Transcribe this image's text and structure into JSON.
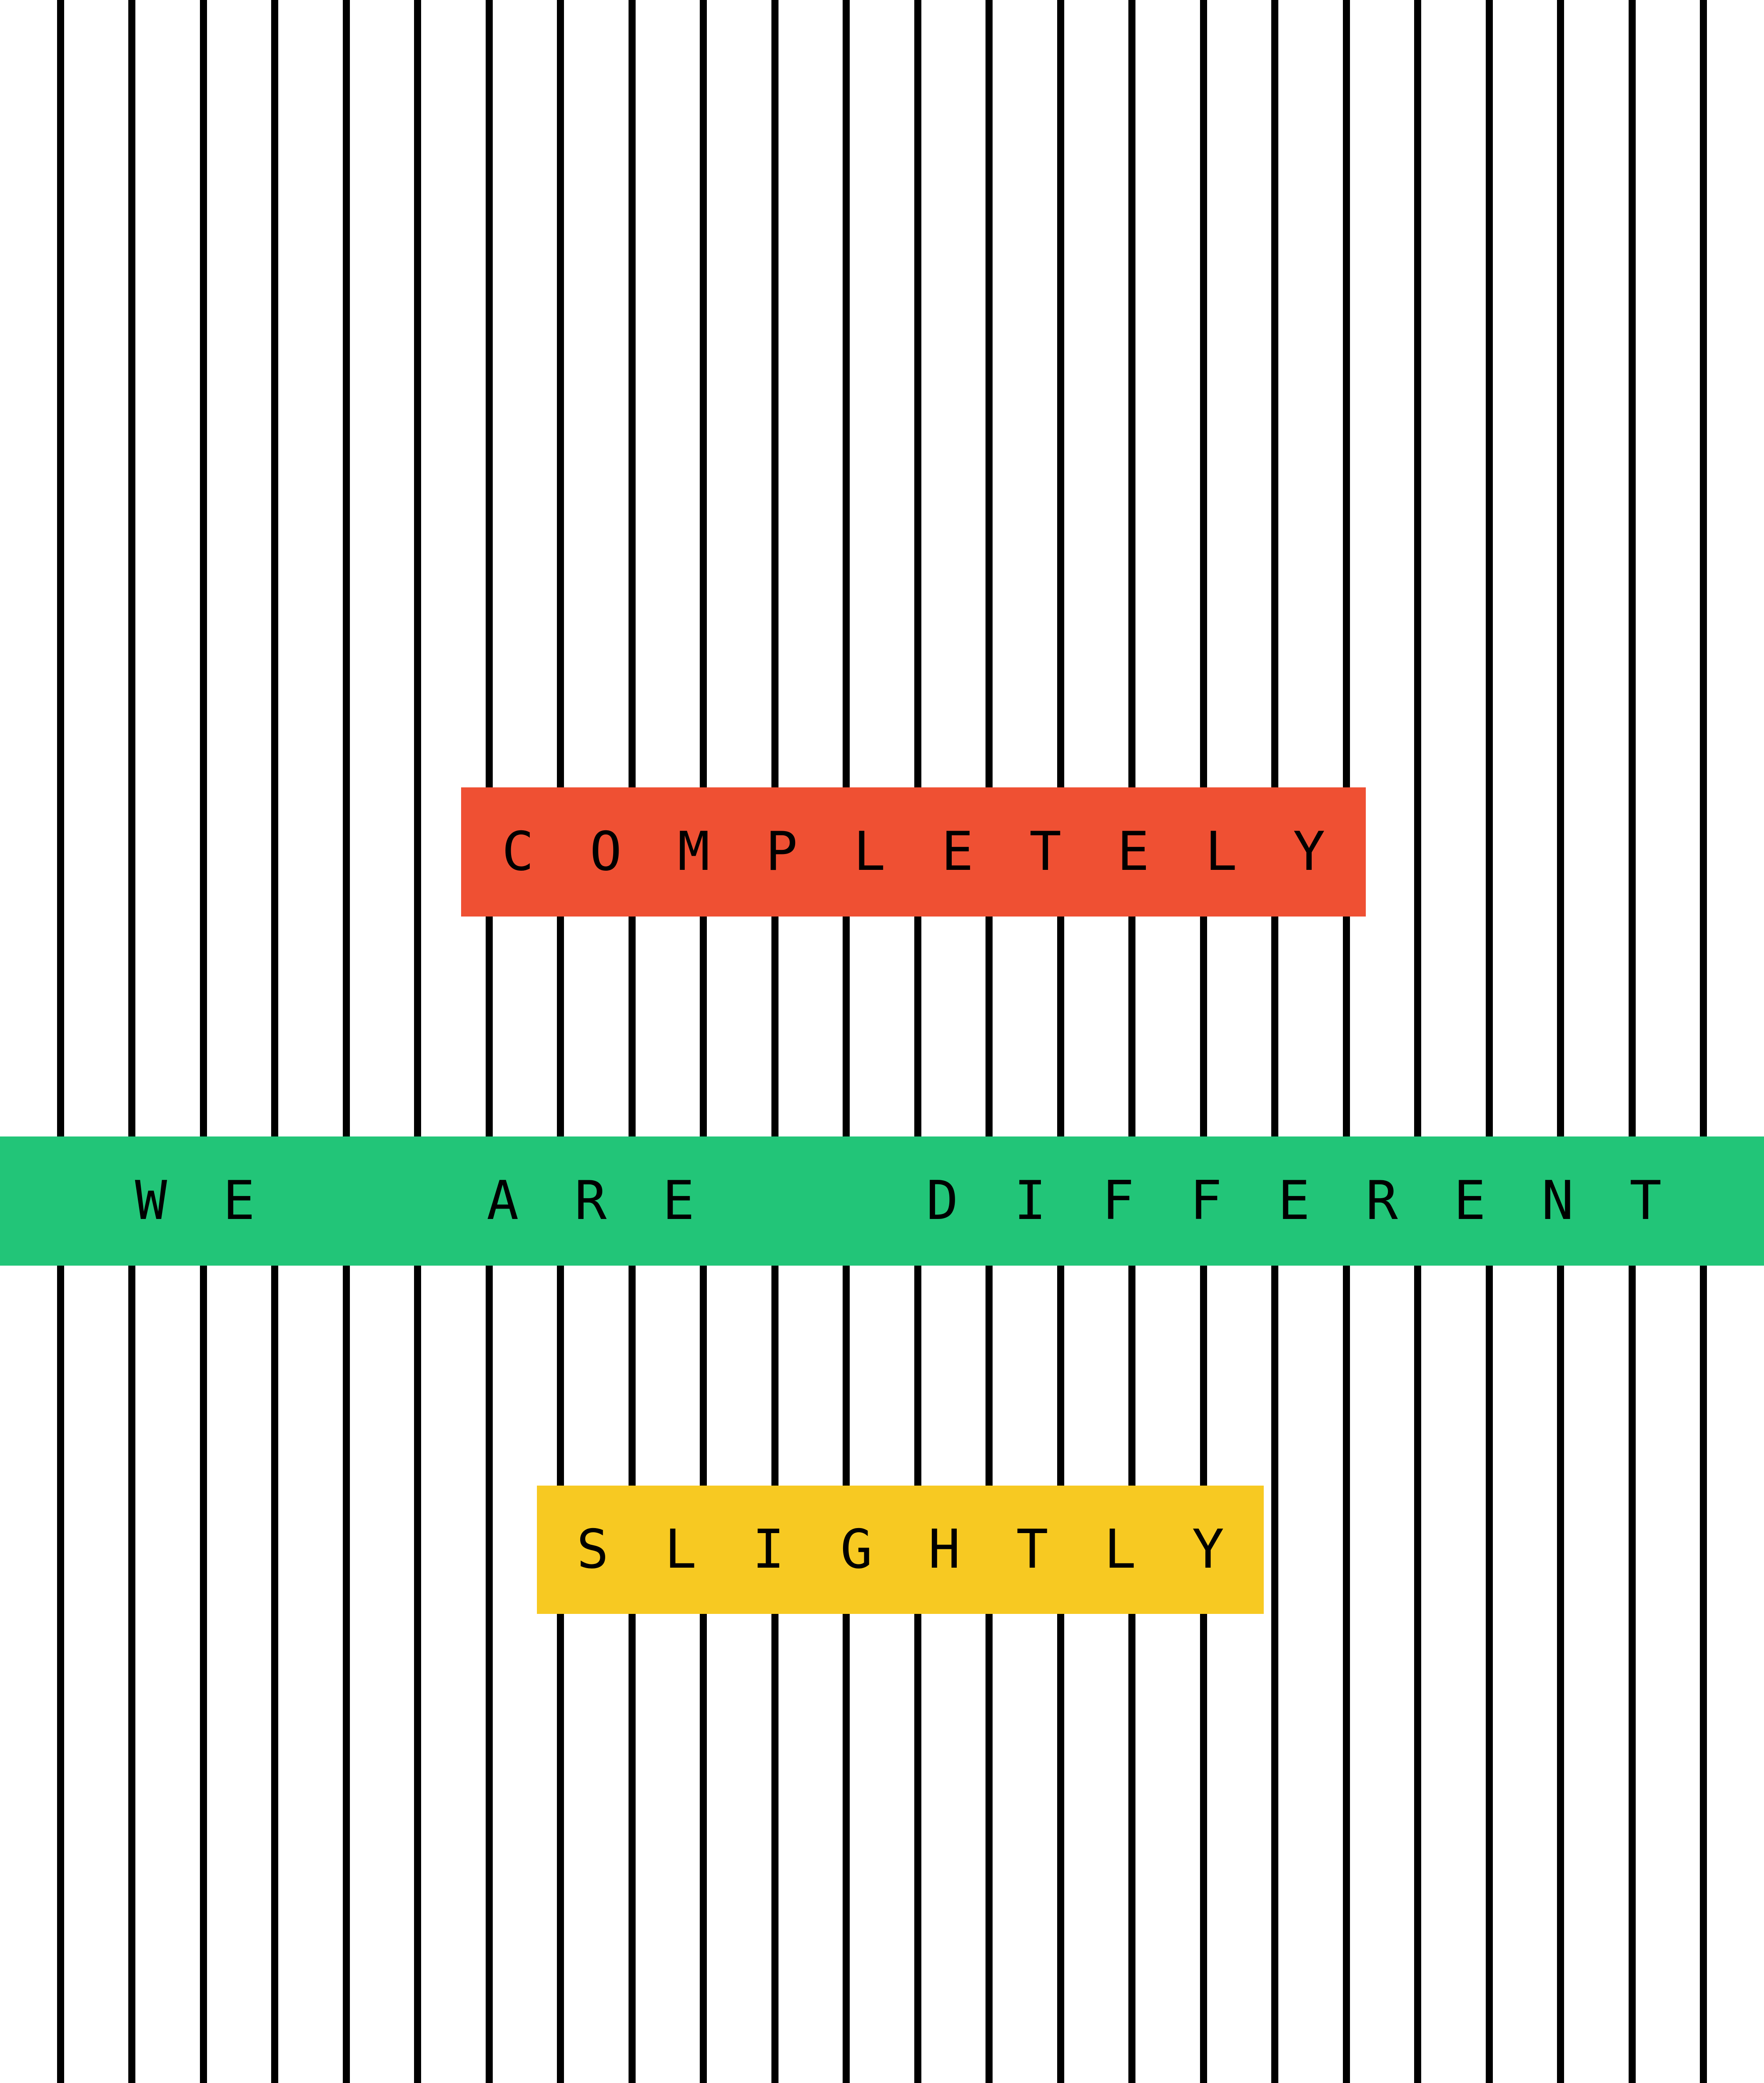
{
  "poster": {
    "top_word": "COMPLETELY",
    "middle_phrase": "WE  ARE  DIFFERENT",
    "bottom_word": "SLIGHTLY"
  },
  "colors": {
    "background": "#ffffff",
    "stripes": "#000000",
    "top_band": "#EF5033",
    "middle_band": "#22C578",
    "bottom_band": "#F7C922",
    "text": "#000000"
  }
}
